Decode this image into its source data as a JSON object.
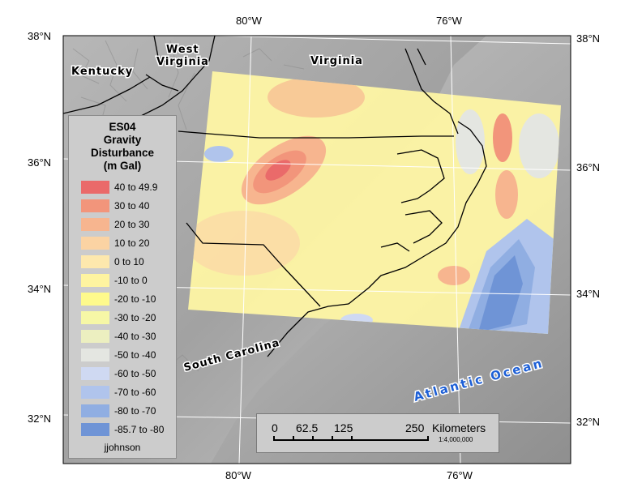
{
  "lat_labels": [
    "38°N",
    "36°N",
    "34°N",
    "32°N"
  ],
  "lon_labels": [
    "80°W",
    "76°W"
  ],
  "places": {
    "kentucky": "Kentucky",
    "west_virginia_1": "West",
    "west_virginia_2": "Virginia",
    "virginia": "Virginia",
    "south_carolina": "South Carolina",
    "atlantic": "Atlantic Ocean"
  },
  "legend": {
    "title": [
      "ES04",
      "Gravity",
      "Disturbance",
      "(m Gal)"
    ],
    "items": [
      {
        "label": "40 to 49.9",
        "color": "#ea6a6a"
      },
      {
        "label": "30 to 40",
        "color": "#f2957b"
      },
      {
        "label": "20 to 30",
        "color": "#f7b58f"
      },
      {
        "label": "10 to 20",
        "color": "#fbd3a3"
      },
      {
        "label": "0 to 10",
        "color": "#fde8ad"
      },
      {
        "label": "-10 to 0",
        "color": "#fef4a0"
      },
      {
        "label": "-20 to -10",
        "color": "#fefa8c"
      },
      {
        "label": "-30 to -20",
        "color": "#f6f7a6"
      },
      {
        "label": "-40 to -30",
        "color": "#ecefc0"
      },
      {
        "label": "-50 to -40",
        "color": "#e4e6e1"
      },
      {
        "label": "-60 to -50",
        "color": "#cfd9f2"
      },
      {
        "label": "-70 to -60",
        "color": "#b0c4ec"
      },
      {
        "label": "-80 to -70",
        "color": "#90aee2"
      },
      {
        "label": "-85.7 to -80",
        "color": "#6f94d6"
      }
    ],
    "author": "jjohnson"
  },
  "scale": {
    "ticks": [
      "0",
      "62.5",
      "125",
      "250"
    ],
    "unit": "Kilometers",
    "ratio": "1:4,000,000"
  }
}
